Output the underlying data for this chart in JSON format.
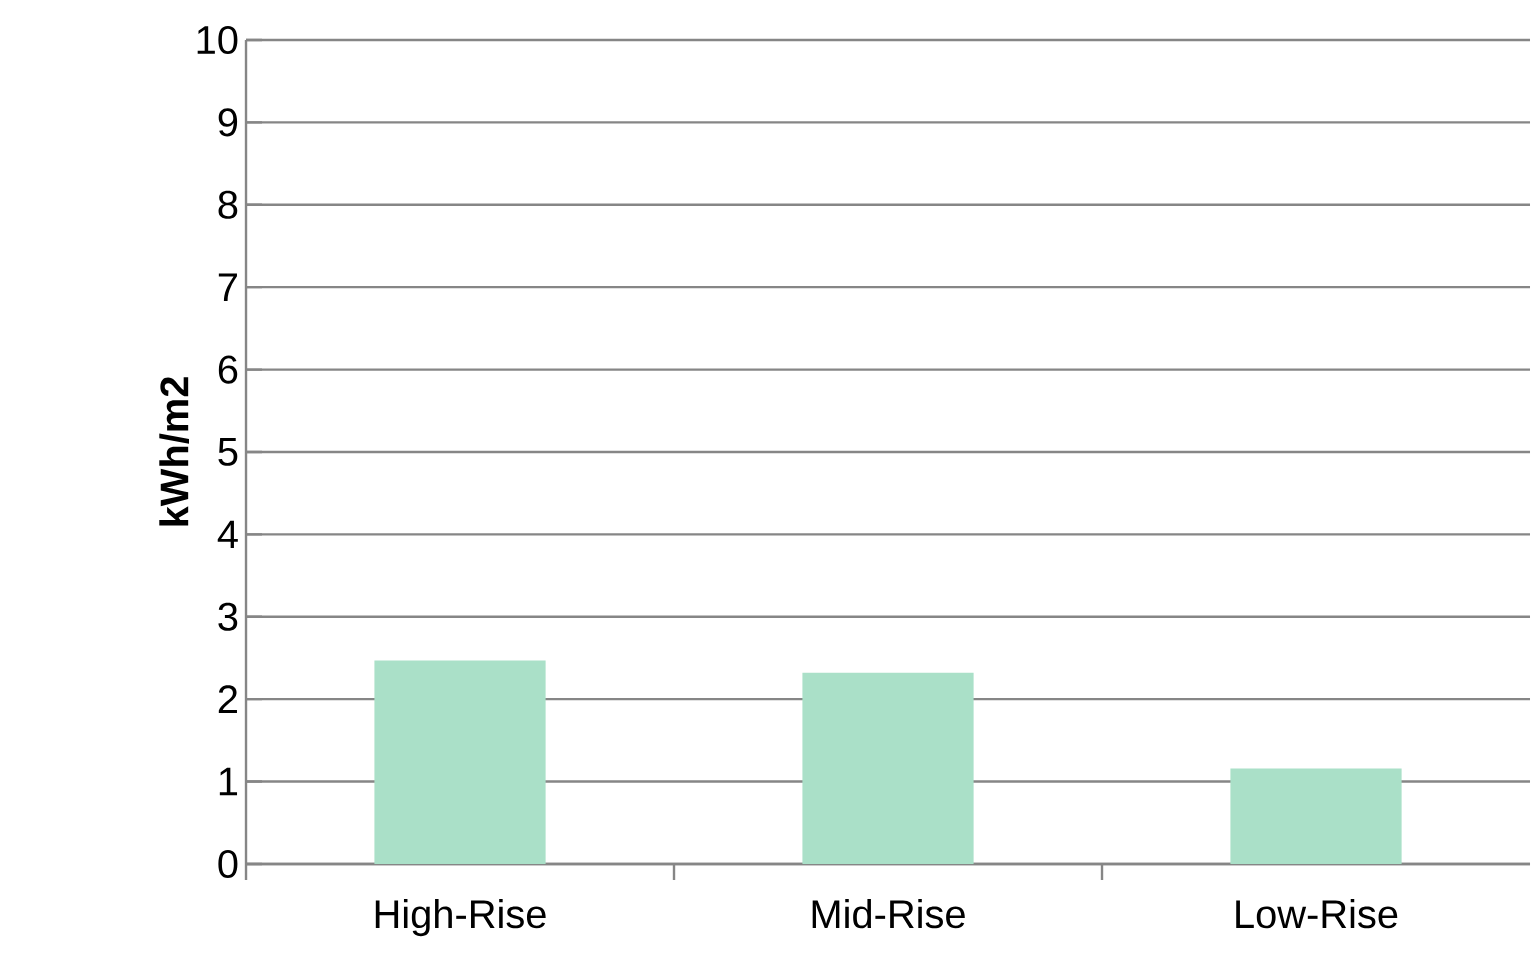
{
  "chart_data": {
    "type": "bar",
    "ylabel": "kWh/m2",
    "categories": [
      "High-Rise",
      "Mid-Rise",
      "Low-Rise"
    ],
    "values": [
      2.47,
      2.32,
      1.16
    ],
    "color": "#aae0c8",
    "ylim": [
      0,
      10
    ],
    "yticks": [
      0,
      1,
      2,
      3,
      4,
      5,
      6,
      7,
      8,
      9,
      10
    ],
    "grid": "y"
  }
}
